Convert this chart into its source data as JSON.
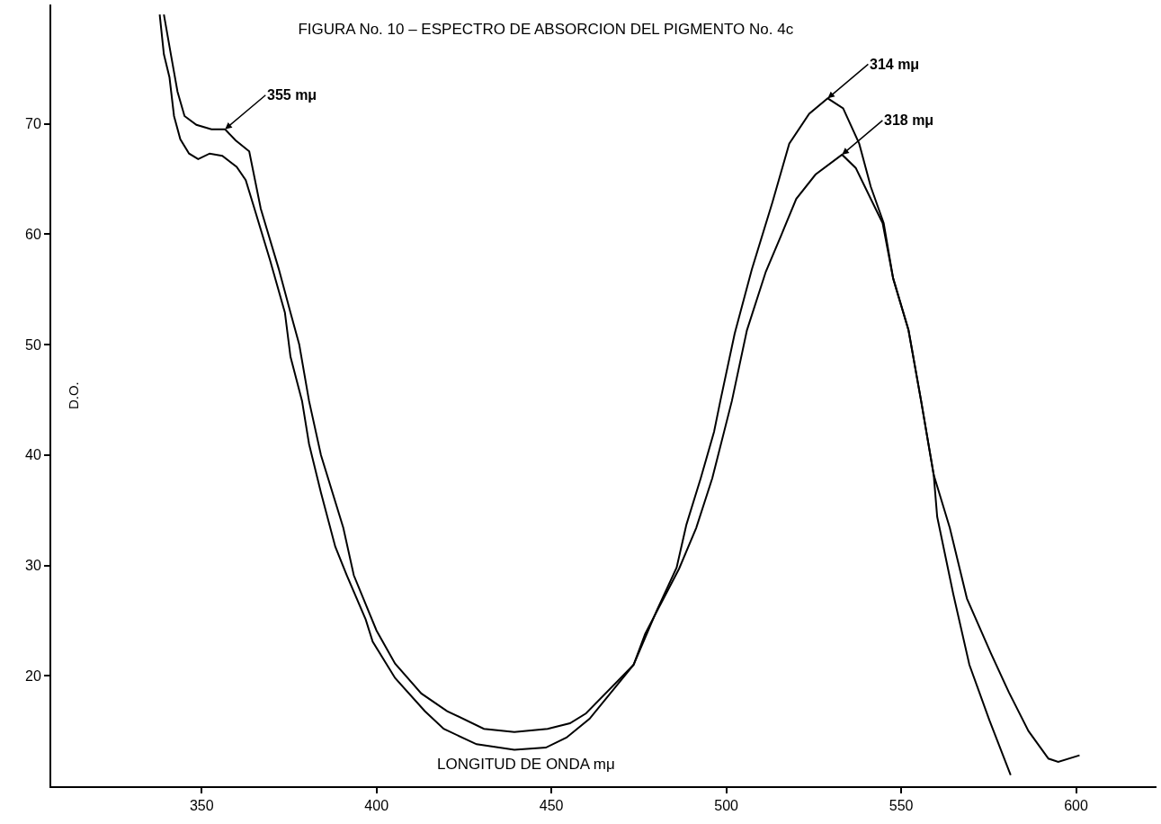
{
  "chart_data": {
    "type": "line",
    "title": "FIGURA No. 10 – ESPECTRO DE ABSORCION DEL PIGMENTO No. 4c",
    "xlabel": "LONGITUD DE ONDA mμ",
    "ylabel": "D.O.",
    "xlim": [
      307,
      623
    ],
    "ylim": [
      10,
      80.8
    ],
    "xticks": [
      350,
      400,
      450,
      500,
      550,
      600
    ],
    "yticks": [
      20,
      30,
      40,
      50,
      60,
      70
    ],
    "marker": "none",
    "line_style": "solid",
    "annotations": [
      {
        "text": "355 mμ",
        "x": 356.7,
        "y": 69.5
      },
      {
        "text": "314 mμ",
        "x": 529,
        "y": 72.3
      },
      {
        "text": "318 mμ",
        "x": 533.1,
        "y": 67.2
      }
    ],
    "series": [
      {
        "color": "#000000",
        "x": [
          339.2,
          341.3,
          343.1,
          345.1,
          348.5,
          352.8,
          356.7,
          359.7,
          363.6,
          366.9,
          372,
          375.4,
          377.9,
          380.7,
          384.1,
          390.5,
          393.5,
          400,
          405.3,
          412.8,
          420.2,
          430.7,
          439.4,
          448.9,
          455.3,
          459.9,
          473.5,
          480.1,
          485.8,
          488.6,
          492.7,
          496.5,
          498.3,
          502.4,
          507.3,
          513.2,
          518,
          523.7,
          529,
          533.4,
          538,
          541.3,
          545,
          547.7,
          552.1,
          555.7,
          559.3,
          563.9,
          568.8,
          575.7,
          580.8,
          586.4,
          592.1,
          594.9,
          601
        ],
        "values": [
          79.9,
          76.1,
          72.9,
          70.7,
          69.9,
          69.5,
          69.5,
          68.5,
          67.5,
          62.3,
          56.9,
          52.9,
          50,
          44.9,
          40,
          33.4,
          29.1,
          24.1,
          21.1,
          18.4,
          16.8,
          15.2,
          14.9,
          15.2,
          15.7,
          16.6,
          21,
          25.9,
          29.8,
          33.7,
          37.9,
          42.1,
          44.9,
          51,
          56.8,
          62.9,
          68.2,
          70.9,
          72.3,
          71.4,
          68.2,
          64.3,
          61,
          56,
          51.3,
          44.9,
          38.2,
          33.4,
          27,
          22,
          18.5,
          15,
          12.5,
          12.2,
          12.8
        ]
      },
      {
        "color": "#000000",
        "x": [
          338,
          339.2,
          340.8,
          342.1,
          343.9,
          346.4,
          349,
          352.3,
          355.9,
          360,
          362.6,
          365.1,
          369.5,
          373.8,
          375.4,
          378.7,
          380.7,
          384.1,
          388.2,
          391.5,
          396.9,
          398.9,
          405.3,
          413.8,
          419.2,
          428.6,
          439.4,
          448.4,
          454.3,
          460.9,
          473.5,
          476.8,
          481.4,
          486.5,
          491.4,
          496,
          501.6,
          505.9,
          511.3,
          515.7,
          520,
          525.5,
          533.1,
          537,
          541.3,
          544.7,
          547.7,
          552.1,
          555.7,
          559.3,
          560.3,
          564.9,
          569.5,
          575.2,
          581.3
        ],
        "values": [
          79.9,
          76.3,
          74.2,
          70.7,
          68.6,
          67.3,
          66.8,
          67.3,
          67.1,
          66.1,
          64.9,
          62.3,
          57.7,
          52.9,
          48.9,
          44.9,
          41,
          36.6,
          31.7,
          29.1,
          25.1,
          23.1,
          19.8,
          16.8,
          15.2,
          13.8,
          13.3,
          13.5,
          14.4,
          16.1,
          21,
          23.8,
          26.6,
          29.7,
          33.4,
          37.9,
          44.9,
          51.3,
          56.6,
          59.9,
          63.2,
          65.4,
          67.2,
          66,
          63.2,
          61,
          56,
          51.3,
          44.9,
          38.2,
          34.4,
          27.4,
          21,
          16,
          11
        ]
      }
    ]
  }
}
